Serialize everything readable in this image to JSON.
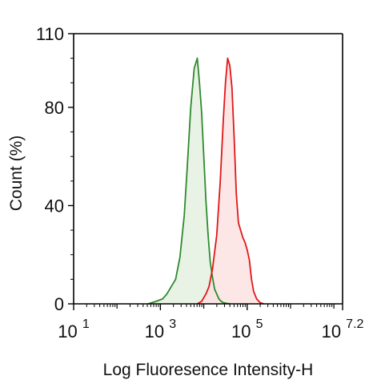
{
  "chart_data": {
    "type": "area",
    "title": "",
    "xlabel": "Log Fluoresence Intensity-H",
    "ylabel": "Count  (%)",
    "x_scale": "log10",
    "xlim": [
      1,
      7.2
    ],
    "ylim": [
      0,
      110
    ],
    "grid": false,
    "legend": "none",
    "x_ticks": [
      {
        "base": "10",
        "exp": "1",
        "value": 1
      },
      {
        "base": "10",
        "exp": "3",
        "value": 3
      },
      {
        "base": "10",
        "exp": "5",
        "value": 5
      },
      {
        "base": "10",
        "exp": "7.2",
        "value": 7.2
      }
    ],
    "y_ticks": [
      {
        "label": "0",
        "value": 0
      },
      {
        "label": "40",
        "value": 40
      },
      {
        "label": "80",
        "value": 80
      },
      {
        "label": "110",
        "value": 110
      }
    ],
    "series": [
      {
        "color": "#2e8b2e",
        "fill": "#e4f0e0",
        "x": [
          2.72,
          2.9,
          3.05,
          3.15,
          3.25,
          3.35,
          3.45,
          3.55,
          3.62,
          3.7,
          3.78,
          3.85,
          3.9,
          3.95,
          4.0,
          4.05,
          4.1,
          4.15,
          4.2,
          4.25,
          4.3,
          4.35,
          4.4,
          4.45,
          4.52,
          4.6
        ],
        "values": [
          0,
          1,
          2,
          4,
          7,
          10,
          19,
          36,
          56,
          80,
          96,
          100,
          90,
          78,
          60,
          42,
          28,
          17,
          11,
          6,
          4,
          2,
          1,
          0.5,
          0.2,
          0
        ]
      },
      {
        "color": "#e01818",
        "fill": "#fbe2e2",
        "x": [
          3.85,
          3.95,
          4.05,
          4.12,
          4.2,
          4.3,
          4.38,
          4.45,
          4.5,
          4.55,
          4.6,
          4.65,
          4.7,
          4.75,
          4.8,
          4.85,
          4.9,
          4.95,
          5.0,
          5.05,
          5.1,
          5.15,
          5.22,
          5.3,
          5.38
        ],
        "values": [
          0,
          1,
          4,
          7,
          14,
          28,
          50,
          75,
          90,
          100,
          97,
          88,
          68,
          45,
          33,
          30,
          27,
          25,
          22,
          18,
          10,
          5,
          2,
          0.5,
          0
        ]
      }
    ]
  }
}
